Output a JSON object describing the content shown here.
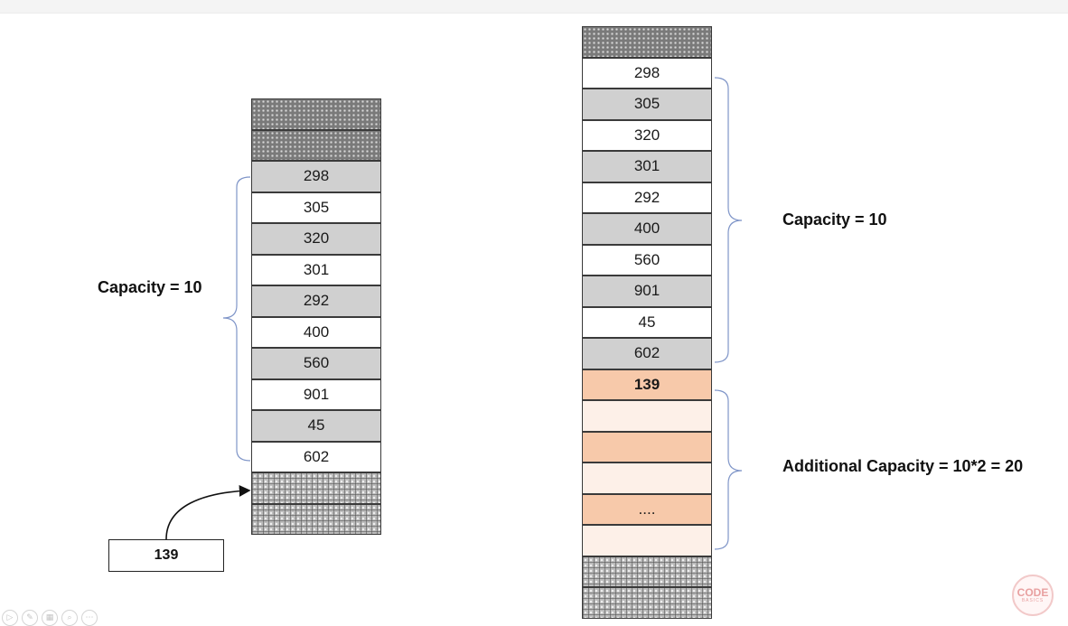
{
  "left_array": {
    "cells": [
      {
        "text": "",
        "style": "hatch-a"
      },
      {
        "text": "",
        "style": "hatch-a"
      },
      {
        "text": "298",
        "style": "gray"
      },
      {
        "text": "305",
        "style": "white"
      },
      {
        "text": "320",
        "style": "gray"
      },
      {
        "text": "301",
        "style": "white"
      },
      {
        "text": "292",
        "style": "gray"
      },
      {
        "text": "400",
        "style": "white"
      },
      {
        "text": "560",
        "style": "gray"
      },
      {
        "text": "901",
        "style": "white"
      },
      {
        "text": "45",
        "style": "gray"
      },
      {
        "text": "602",
        "style": "white"
      },
      {
        "text": "",
        "style": "hatch-b"
      },
      {
        "text": "",
        "style": "hatch-b"
      }
    ],
    "capacity_label": "Capacity = 10",
    "new_element": "139"
  },
  "right_array": {
    "cells": [
      {
        "text": "",
        "style": "hatch-a"
      },
      {
        "text": "298",
        "style": "white"
      },
      {
        "text": "305",
        "style": "gray"
      },
      {
        "text": "320",
        "style": "white"
      },
      {
        "text": "301",
        "style": "gray"
      },
      {
        "text": "292",
        "style": "white"
      },
      {
        "text": "400",
        "style": "gray"
      },
      {
        "text": "560",
        "style": "white"
      },
      {
        "text": "901",
        "style": "gray"
      },
      {
        "text": "45",
        "style": "white"
      },
      {
        "text": "602",
        "style": "gray"
      },
      {
        "text": "139",
        "style": "orange bold"
      },
      {
        "text": "",
        "style": "peach"
      },
      {
        "text": "",
        "style": "orange"
      },
      {
        "text": "",
        "style": "peach"
      },
      {
        "text": "....",
        "style": "orange"
      },
      {
        "text": "",
        "style": "peach"
      },
      {
        "text": "",
        "style": "hatch-b"
      },
      {
        "text": "",
        "style": "hatch-b"
      }
    ],
    "capacity_label": "Capacity = 10",
    "additional_label": "Additional Capacity = 10*2 = 20"
  },
  "toolbar": {
    "icons": [
      "play-icon",
      "pen-icon",
      "slides-icon",
      "zoom-icon",
      "more-icon"
    ]
  },
  "logo": {
    "line1": "CODE",
    "line2": "BASICS"
  },
  "colors": {
    "gray_cell": "#d0d0d0",
    "orange_cell": "#f7c9aa",
    "peach_cell": "#fdf0e8",
    "brace": "#7f95c8"
  }
}
